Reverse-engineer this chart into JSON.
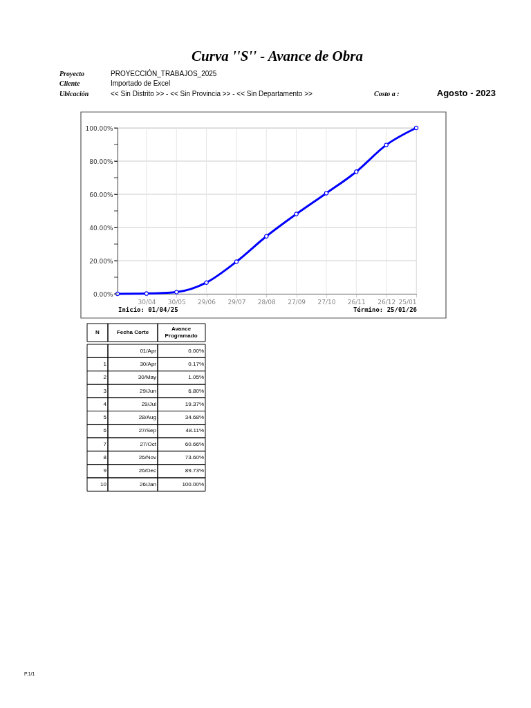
{
  "chart_data": {
    "type": "line",
    "title": "Curva ''S'' - Avance de Obra",
    "x": [
      "2025-04-01",
      "2025-04-30",
      "2025-05-30",
      "2025-06-29",
      "2025-07-29",
      "2025-08-28",
      "2025-09-27",
      "2025-10-27",
      "2025-11-26",
      "2025-12-26",
      "2026-01-25"
    ],
    "series": [
      {
        "color": "#0000ff",
        "values": [
          0.0,
          0.17,
          1.05,
          6.8,
          19.37,
          34.68,
          48.11,
          60.66,
          73.6,
          89.73,
          100.0
        ]
      }
    ],
    "xlim": [
      "2025-04-01",
      "2026-01-25"
    ],
    "xticks": [
      {
        "value": "2025-04-30",
        "label": "30/04"
      },
      {
        "value": "2025-05-30",
        "label": "30/05"
      },
      {
        "value": "2025-06-29",
        "label": "29/06"
      },
      {
        "value": "2025-07-29",
        "label": "29/07"
      },
      {
        "value": "2025-08-28",
        "label": "28/08"
      },
      {
        "value": "2025-09-27",
        "label": "27/09"
      },
      {
        "value": "2025-10-27",
        "label": "27/10"
      },
      {
        "value": "2025-11-26",
        "label": "26/11"
      },
      {
        "value": "2025-12-26",
        "label": "26/12"
      },
      {
        "value": "2026-01-25",
        "label": "25/01"
      }
    ],
    "ylim": [
      0,
      100
    ],
    "yticks": [
      {
        "value": 0,
        "label": "0.00%"
      },
      {
        "value": 10,
        "label": null
      },
      {
        "value": 20,
        "label": "20.00%"
      },
      {
        "value": 30,
        "label": null
      },
      {
        "value": 40,
        "label": "40.00%"
      },
      {
        "value": 50,
        "label": null
      },
      {
        "value": 60,
        "label": "60.00%"
      },
      {
        "value": 70,
        "label": null
      },
      {
        "value": 80,
        "label": "80.00%"
      },
      {
        "value": 90,
        "label": null
      },
      {
        "value": 100,
        "label": "100.00%"
      }
    ],
    "grid": true,
    "marker": "circle",
    "line_style": "solid",
    "annotations": [
      "Proyecto",
      "PROYECCIÓN_TRABAJOS_2025",
      "Cliente",
      "Importado de Excel",
      "Ubicación",
      "<< Sin Distrito >> - << Sin Provincia >> - << Sin Departamento >>",
      "Costo a :",
      "Agosto - 2023",
      "Inicio: 01/04/25",
      "Término: 25/01/26",
      "N",
      "Fecha Corte",
      "Avance Programado",
      "P.1/1",
      "1",
      "2",
      "3",
      "4",
      "5",
      "6",
      "7",
      "8",
      "9",
      "10",
      "01/Apr",
      "30/Apr",
      "30/May",
      "29/Jun",
      "29/Jul",
      "28/Aug",
      "27/Sep",
      "27/Oct",
      "26/Nov",
      "26/Dec",
      "26/Jan",
      "0.00%",
      "0.17%",
      "1.05%",
      "6.80%",
      "19.37%",
      "34.68%",
      "48.11%",
      "60.66%",
      "73.60%",
      "89.73%",
      "100.00%"
    ]
  }
}
